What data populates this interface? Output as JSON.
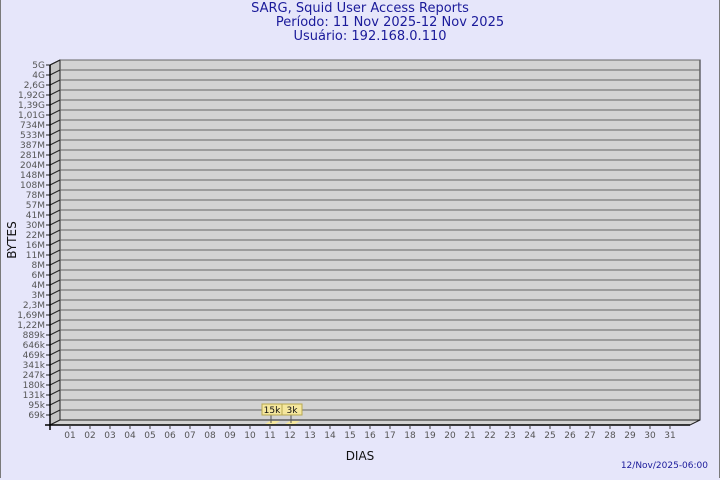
{
  "header": {
    "title": "SARG, Squid User Access Reports",
    "period": "Período: 11 Nov 2025-12 Nov 2025",
    "user": "Usuário: 192.168.0.110"
  },
  "footer": {
    "timestamp": "12/Nov/2025-06:00"
  },
  "colors": {
    "background": "#e6e6fa",
    "plot": "#d3d3d3",
    "bar": "#f5e79e",
    "title": "#1a1a9a"
  },
  "chart_data": {
    "type": "bar",
    "xlabel": "DIAS",
    "ylabel": "BYTES",
    "y_scale": "log",
    "grid": true,
    "y_ticks": [
      "5G",
      "4G",
      "2,6G",
      "1,92G",
      "1,39G",
      "1,01G",
      "734M",
      "533M",
      "387M",
      "281M",
      "204M",
      "148M",
      "108M",
      "78M",
      "57M",
      "41M",
      "30M",
      "22M",
      "16M",
      "11M",
      "8M",
      "6M",
      "4M",
      "3M",
      "2,3M",
      "1,69M",
      "1,22M",
      "889k",
      "646k",
      "469k",
      "341k",
      "247k",
      "180k",
      "131k",
      "95k",
      "69k"
    ],
    "categories": [
      "01",
      "02",
      "03",
      "04",
      "05",
      "06",
      "07",
      "08",
      "09",
      "10",
      "11",
      "12",
      "13",
      "14",
      "15",
      "16",
      "17",
      "18",
      "19",
      "20",
      "21",
      "22",
      "23",
      "24",
      "25",
      "26",
      "27",
      "28",
      "29",
      "30",
      "31"
    ],
    "bars": [
      {
        "category": "11",
        "value": 15000,
        "label": "15k"
      },
      {
        "category": "12",
        "value": 3000,
        "label": "3k"
      }
    ]
  }
}
